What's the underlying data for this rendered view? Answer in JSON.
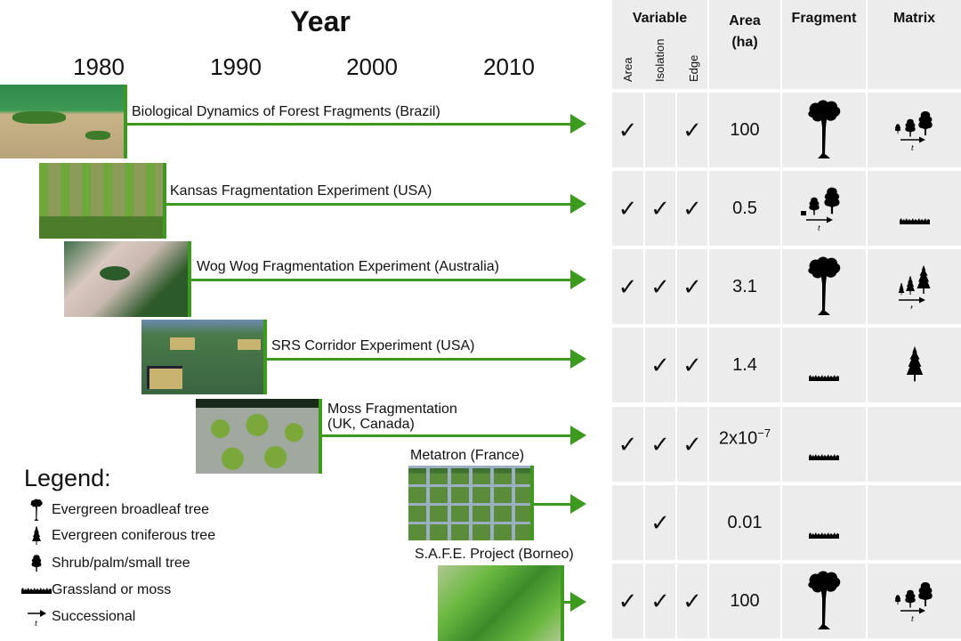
{
  "timeline": {
    "title": "Year",
    "ticks": [
      "1980",
      "1990",
      "2000",
      "2010"
    ]
  },
  "experiments": [
    {
      "name": "Biological Dynamics of Forest Fragments (Brazil)",
      "photo_colors": [
        "#2e8a4a",
        "#c9b48a",
        "#3d7a2a"
      ]
    },
    {
      "name": "Kansas Fragmentation Experiment (USA)",
      "photo_colors": [
        "#6fa83a",
        "#8c9a5a",
        "#4d7d2a"
      ]
    },
    {
      "name": "Wog Wog Fragmentation Experiment (Australia)",
      "photo_colors": [
        "#3e6e4a",
        "#d8c8c0",
        "#2d5a2a"
      ]
    },
    {
      "name": "SRS Corridor Experiment (USA)",
      "photo_colors": [
        "#4a7a4a",
        "#c8b470",
        "#3a6440"
      ]
    },
    {
      "name_line1": "Moss Fragmentation",
      "name_line2": "(UK, Canada)",
      "photo_colors": [
        "#7aa83a",
        "#a0a8a0",
        "#1a2a1a"
      ]
    },
    {
      "name": "Metatron (France)",
      "photo_colors": [
        "#5a8c3a",
        "#9ab0c0",
        "#3e7030"
      ]
    },
    {
      "name": "S.A.F.E. Project (Borneo)",
      "photo_colors": [
        "#6ab840",
        "#3a8a2a",
        "#b0c890"
      ]
    }
  ],
  "table": {
    "headers": {
      "variable": "Variable",
      "variable_sub": [
        "Area",
        "Isolation",
        "Edge"
      ],
      "area_line1": "Area",
      "area_line2": "(ha)",
      "fragment": "Fragment",
      "matrix": "Matrix"
    },
    "check_glyph": "✓",
    "rows": [
      {
        "area": true,
        "isolation": false,
        "edge": true,
        "area_ha": "100",
        "fragment": "evergreen-broadleaf-tree",
        "matrix": "successional-shrub"
      },
      {
        "area": true,
        "isolation": true,
        "edge": true,
        "area_ha": "0.5",
        "fragment": "successional-shrub-from-grass",
        "matrix": "grassland"
      },
      {
        "area": true,
        "isolation": true,
        "edge": true,
        "area_ha": "3.1",
        "fragment": "evergreen-broadleaf-tree",
        "matrix": "successional-conifer"
      },
      {
        "area": false,
        "isolation": true,
        "edge": true,
        "area_ha": "1.4",
        "fragment": "grassland",
        "matrix": "evergreen-coniferous-tree"
      },
      {
        "area": true,
        "isolation": true,
        "edge": true,
        "area_ha_base": "2x10",
        "area_ha_exp": "−7",
        "fragment": "grassland",
        "matrix": "none"
      },
      {
        "area": false,
        "isolation": true,
        "edge": false,
        "area_ha": "0.01",
        "fragment": "grassland",
        "matrix": "none"
      },
      {
        "area": true,
        "isolation": true,
        "edge": true,
        "area_ha": "100",
        "fragment": "evergreen-broadleaf-tree",
        "matrix": "successional-shrub"
      }
    ]
  },
  "legend": {
    "title": "Legend:",
    "items": [
      {
        "icon": "evergreen-broadleaf-tree",
        "label": "Evergreen broadleaf tree"
      },
      {
        "icon": "evergreen-coniferous-tree",
        "label": "Evergreen coniferous tree"
      },
      {
        "icon": "shrub",
        "label": "Shrub/palm/small tree"
      },
      {
        "icon": "grassland",
        "label": "Grassland or moss"
      },
      {
        "icon": "successional-arrow",
        "label": "Successional"
      }
    ],
    "successional_t": "t"
  },
  "colors": {
    "arrow_green": "#3c9a1e",
    "cell_bg": "#ececec"
  }
}
